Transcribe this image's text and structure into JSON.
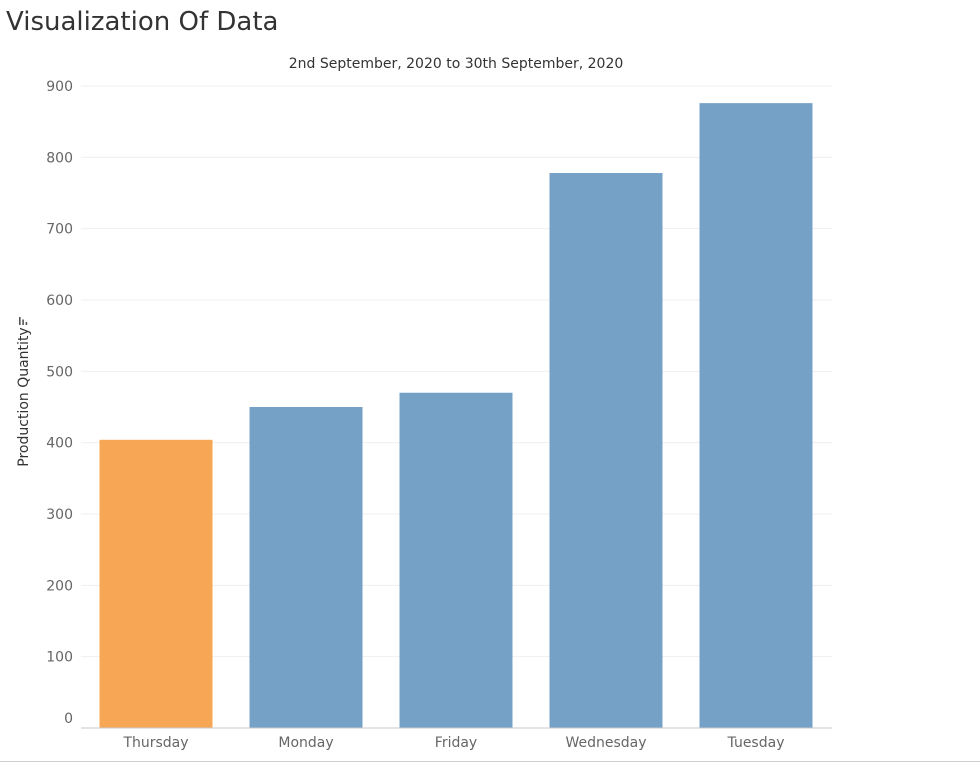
{
  "page": {
    "title": "Visualization Of Data"
  },
  "chart_data": {
    "type": "bar",
    "subtitle": "2nd September, 2020 to 30th September, 2020",
    "ylabel": "Production Quantity",
    "xlabel": "",
    "ylim": [
      0,
      900
    ],
    "yticks": [
      0,
      100,
      200,
      300,
      400,
      500,
      600,
      700,
      800,
      900
    ],
    "categories": [
      "Thursday",
      "Monday",
      "Friday",
      "Wednesday",
      "Tuesday"
    ],
    "values": [
      404,
      450,
      470,
      778,
      876
    ],
    "colors": [
      "#f7a656",
      "#75a1c7",
      "#75a1c7",
      "#75a1c7",
      "#75a1c7"
    ],
    "grid": true,
    "sort_icon": "sort-descending-icon"
  }
}
